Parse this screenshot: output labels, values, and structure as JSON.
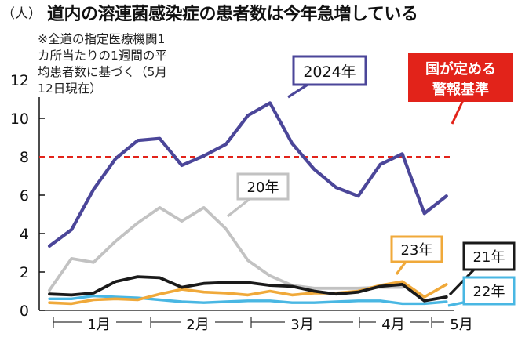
{
  "title": "道内の溶連菌感染症の患者数は今年急増している",
  "unit_label": "（人）",
  "note_lines": [
    "※全道の指定医療機関1",
    "カ所当たりの1週間の平",
    "均患者数に基づく（5月",
    "12日現在）"
  ],
  "chart_data": {
    "type": "line",
    "title": "道内の溶連菌感染症の患者数は今年急増している",
    "ylabel": "（人）",
    "xlabel": "",
    "ylim": [
      0,
      12
    ],
    "yticks": [
      0,
      2,
      4,
      6,
      8,
      10,
      12
    ],
    "grid": false,
    "months": [
      "1月",
      "2月",
      "3月",
      "4月",
      "5月"
    ],
    "threshold": {
      "value": 8,
      "label": "国が定める警報基準",
      "label_lines": [
        "国が定める",
        "警報基準"
      ],
      "color": "#e2231a"
    },
    "series": [
      {
        "name": "2024年",
        "color": "#4b4699",
        "values": [
          3.35,
          4.2,
          6.3,
          7.9,
          8.85,
          8.95,
          7.55,
          8.05,
          8.65,
          10.15,
          10.8,
          8.7,
          7.35,
          6.4,
          5.95,
          7.6,
          8.15,
          5.05,
          5.95
        ]
      },
      {
        "name": "20年",
        "color": "#c2c2c2",
        "values": [
          1.05,
          2.7,
          2.5,
          3.6,
          4.55,
          5.35,
          4.65,
          5.35,
          4.25,
          2.6,
          1.8,
          1.3,
          1.15,
          1.15,
          1.15,
          1.2,
          1.2
        ]
      },
      {
        "name": "21年",
        "color": "#1a1a1a",
        "values": [
          0.85,
          0.8,
          0.9,
          1.5,
          1.75,
          1.7,
          1.2,
          1.4,
          1.45,
          1.45,
          1.3,
          1.25,
          1.0,
          0.85,
          0.95,
          1.25,
          1.35,
          0.5,
          0.7
        ]
      },
      {
        "name": "22年",
        "color": "#49b7e3",
        "values": [
          0.6,
          0.6,
          0.75,
          0.7,
          0.65,
          0.55,
          0.45,
          0.4,
          0.45,
          0.5,
          0.5,
          0.4,
          0.4,
          0.45,
          0.5,
          0.5,
          0.35,
          0.35,
          0.45
        ]
      },
      {
        "name": "23年",
        "color": "#f0a93a",
        "values": [
          0.4,
          0.35,
          0.55,
          0.6,
          0.55,
          0.85,
          1.1,
          0.95,
          0.9,
          0.8,
          1.0,
          0.8,
          0.9,
          0.9,
          1.0,
          1.3,
          1.5,
          0.7,
          1.35
        ]
      }
    ]
  }
}
